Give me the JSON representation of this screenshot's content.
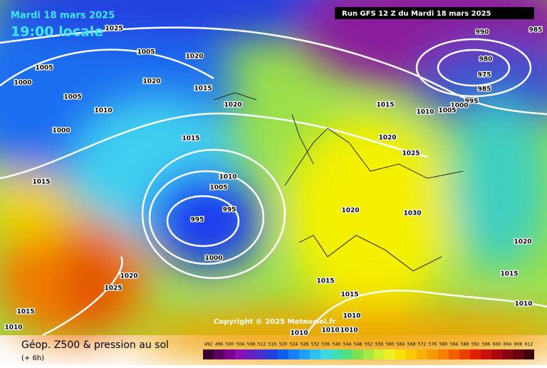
{
  "header": {
    "date": "Mardi 18 mars 2025",
    "time": "19:00 locale",
    "run": "Run GFS 12 Z du Mardi 18 mars 2025"
  },
  "copyright": "Copyright © 2025 Meteociel.fr",
  "footer": {
    "title": "Géop. Z500 & pression au sol",
    "subtitle": "(+ 6h)"
  },
  "legend": {
    "labels": [
      492,
      496,
      500,
      504,
      508,
      512,
      516,
      520,
      524,
      528,
      532,
      536,
      540,
      544,
      548,
      552,
      556,
      560,
      564,
      568,
      572,
      576,
      580,
      584,
      588,
      592,
      596,
      600,
      604,
      608,
      612
    ]
  },
  "isobars": [
    1025,
    1005,
    1020,
    1005,
    1000,
    1020,
    1015,
    1005,
    1020,
    1010,
    1000,
    1015,
    1015,
    1010,
    1005,
    995,
    995,
    1000,
    1020,
    1025,
    1015,
    1010,
    990,
    985,
    980,
    975,
    985,
    995,
    1000,
    1005,
    1010,
    1015,
    1020,
    1025,
    1020,
    1030,
    1020,
    1015,
    1015,
    1015,
    1010,
    1010,
    1010,
    1010,
    1010
  ]
}
